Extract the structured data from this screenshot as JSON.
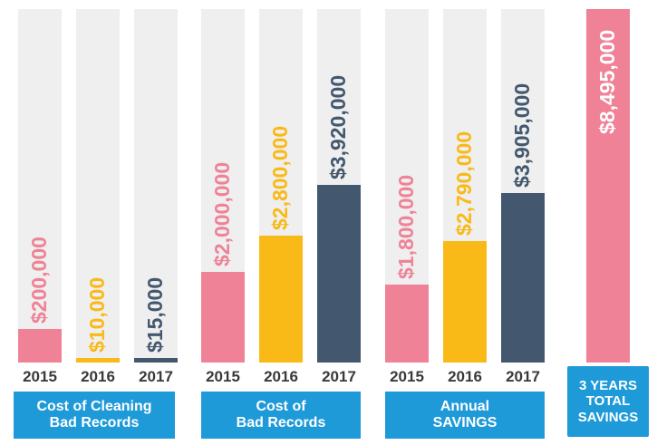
{
  "colors": {
    "2015": "#ef8296",
    "2016": "#f9b917",
    "2017": "#43586e",
    "track": "#efefef",
    "label_bg": "#1f9ad8",
    "total": "#ef8296"
  },
  "chart_data": {
    "type": "bar",
    "groups": [
      {
        "label": "Cost of Cleaning\nBad Records",
        "categories": [
          "2015",
          "2016",
          "2017"
        ],
        "values": [
          200000,
          10000,
          15000
        ],
        "labels": [
          "$200,000",
          "$10,000",
          "$15,000"
        ]
      },
      {
        "label": "Cost of\nBad Records",
        "categories": [
          "2015",
          "2016",
          "2017"
        ],
        "values": [
          2000000,
          2800000,
          3920000
        ],
        "labels": [
          "$2,000,000",
          "$2,800,000",
          "$3,920,000"
        ]
      },
      {
        "label": "Annual\nSAVINGS",
        "categories": [
          "2015",
          "2016",
          "2017"
        ],
        "values": [
          1800000,
          2790000,
          3905000
        ],
        "labels": [
          "$1,800,000",
          "$2,790,000",
          "$3,905,000"
        ]
      }
    ],
    "total": {
      "label": "3 YEARS\nTOTAL\nSAVINGS",
      "value": 8495000,
      "value_label": "$8,495,000"
    },
    "ylim": [
      0,
      8495000
    ]
  }
}
